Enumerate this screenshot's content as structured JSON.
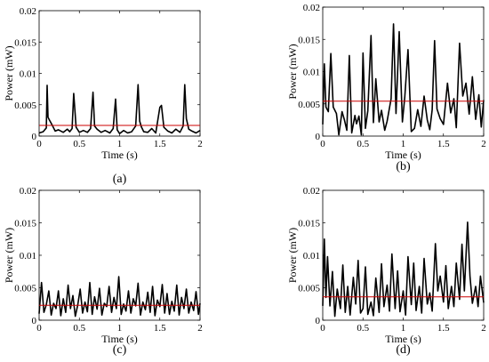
{
  "chart_data": [
    {
      "type": "line",
      "panel_label": "(a)",
      "xlabel": "Time (s)",
      "ylabel": "Power (mW)",
      "xlim": [
        0,
        2
      ],
      "ylim": [
        0,
        0.02
      ],
      "xticks": [
        "0",
        "0.5",
        "1",
        "1.5",
        "2"
      ],
      "yticks": [
        "0",
        "0.005",
        "0.01",
        "0.015",
        "0.02"
      ],
      "grid": false,
      "series": [
        {
          "color": "#000000",
          "x": [
            0.0,
            0.05,
            0.09,
            0.1,
            0.11,
            0.13,
            0.16,
            0.2,
            0.24,
            0.3,
            0.35,
            0.38,
            0.41,
            0.43,
            0.46,
            0.5,
            0.55,
            0.6,
            0.64,
            0.67,
            0.69,
            0.72,
            0.77,
            0.82,
            0.88,
            0.92,
            0.95,
            0.97,
            1.0,
            1.05,
            1.1,
            1.15,
            1.2,
            1.23,
            1.25,
            1.27,
            1.3,
            1.35,
            1.4,
            1.45,
            1.5,
            1.52,
            1.55,
            1.6,
            1.65,
            1.7,
            1.75,
            1.79,
            1.81,
            1.83,
            1.86,
            1.9,
            1.95,
            2.0
          ],
          "y": [
            0.0005,
            0.0007,
            0.0013,
            0.0081,
            0.003,
            0.0025,
            0.0018,
            0.0008,
            0.001,
            0.0006,
            0.0011,
            0.0007,
            0.0012,
            0.0068,
            0.0014,
            0.0006,
            0.0009,
            0.0006,
            0.0012,
            0.007,
            0.0016,
            0.0011,
            0.0006,
            0.0009,
            0.0005,
            0.0012,
            0.0059,
            0.001,
            0.0004,
            0.0009,
            0.0005,
            0.0007,
            0.0016,
            0.0082,
            0.0024,
            0.0015,
            0.0007,
            0.0006,
            0.0012,
            0.0005,
            0.0046,
            0.0049,
            0.0014,
            0.0008,
            0.0005,
            0.0011,
            0.0006,
            0.0016,
            0.0082,
            0.0028,
            0.0011,
            0.0008,
            0.0005,
            0.0009
          ]
        },
        {
          "color": "#cc0000",
          "x": [
            0,
            2
          ],
          "y": [
            0.0017,
            0.0017
          ]
        }
      ]
    },
    {
      "type": "line",
      "panel_label": "(b)",
      "xlabel": "Time (s)",
      "ylabel": "Power (mW)",
      "xlim": [
        0,
        2
      ],
      "ylim": [
        0,
        0.02
      ],
      "xticks": [
        "0",
        "0.5",
        "1",
        "1.5",
        "2"
      ],
      "yticks": [
        "0",
        "0.005",
        "0.01",
        "0.015",
        "0.02"
      ],
      "grid": false,
      "series": [
        {
          "color": "#000000",
          "x": [
            0.0,
            0.02,
            0.04,
            0.07,
            0.1,
            0.13,
            0.17,
            0.2,
            0.24,
            0.27,
            0.3,
            0.33,
            0.36,
            0.4,
            0.42,
            0.45,
            0.48,
            0.5,
            0.53,
            0.56,
            0.6,
            0.63,
            0.66,
            0.7,
            0.73,
            0.77,
            0.8,
            0.85,
            0.88,
            0.91,
            0.95,
            0.99,
            1.02,
            1.06,
            1.1,
            1.14,
            1.18,
            1.22,
            1.26,
            1.3,
            1.33,
            1.36,
            1.39,
            1.42,
            1.46,
            1.5,
            1.55,
            1.59,
            1.63,
            1.66,
            1.7,
            1.74,
            1.78,
            1.82,
            1.86,
            1.9,
            1.94,
            1.97,
            2.0
          ],
          "y": [
            0.0018,
            0.0112,
            0.0045,
            0.0038,
            0.0128,
            0.0045,
            0.0035,
            0.0002,
            0.0038,
            0.0025,
            0.0009,
            0.0125,
            0.0005,
            0.0032,
            0.0019,
            0.0031,
            0.0002,
            0.0129,
            0.0012,
            0.0039,
            0.0156,
            0.0021,
            0.0089,
            0.0022,
            0.004,
            0.0009,
            0.0023,
            0.0058,
            0.0174,
            0.0035,
            0.0162,
            0.0022,
            0.0061,
            0.0134,
            0.0007,
            0.0012,
            0.0041,
            0.0015,
            0.0062,
            0.0025,
            0.001,
            0.0041,
            0.0148,
            0.0042,
            0.0027,
            0.0018,
            0.0082,
            0.0036,
            0.0058,
            0.0013,
            0.0144,
            0.0062,
            0.0082,
            0.0034,
            0.0092,
            0.0026,
            0.0064,
            0.0014,
            0.0056
          ]
        },
        {
          "color": "#cc0000",
          "x": [
            0,
            2
          ],
          "y": [
            0.0054,
            0.0054
          ]
        }
      ]
    },
    {
      "type": "line",
      "panel_label": "(c)",
      "xlabel": "Time (s)",
      "ylabel": "Power (mW)",
      "xlim": [
        0,
        2
      ],
      "ylim": [
        0,
        0.02
      ],
      "xticks": [
        "0",
        "0.5",
        "1",
        "1.5",
        "2"
      ],
      "yticks": [
        "0",
        "0.005",
        "0.01",
        "0.015",
        "0.02"
      ],
      "grid": false,
      "series": [
        {
          "color": "#000000",
          "x": [
            0.0,
            0.03,
            0.06,
            0.09,
            0.12,
            0.15,
            0.18,
            0.21,
            0.24,
            0.27,
            0.3,
            0.33,
            0.36,
            0.39,
            0.42,
            0.45,
            0.48,
            0.51,
            0.54,
            0.57,
            0.6,
            0.63,
            0.66,
            0.69,
            0.72,
            0.75,
            0.78,
            0.81,
            0.84,
            0.87,
            0.9,
            0.93,
            0.96,
            0.99,
            1.02,
            1.05,
            1.08,
            1.11,
            1.14,
            1.17,
            1.2,
            1.23,
            1.26,
            1.29,
            1.32,
            1.35,
            1.38,
            1.41,
            1.44,
            1.47,
            1.5,
            1.53,
            1.56,
            1.59,
            1.62,
            1.65,
            1.68,
            1.71,
            1.74,
            1.77,
            1.8,
            1.83,
            1.86,
            1.89,
            1.92,
            1.95,
            1.98,
            2.0
          ],
          "y": [
            0.001,
            0.0058,
            0.0012,
            0.0024,
            0.0045,
            0.0008,
            0.0026,
            0.0018,
            0.0045,
            0.0007,
            0.0033,
            0.0012,
            0.0054,
            0.0018,
            0.0038,
            0.0006,
            0.0023,
            0.0048,
            0.0011,
            0.0028,
            0.0013,
            0.0058,
            0.0009,
            0.0036,
            0.0017,
            0.0049,
            0.0008,
            0.0026,
            0.0021,
            0.0052,
            0.0012,
            0.0035,
            0.0018,
            0.0067,
            0.0009,
            0.0025,
            0.0014,
            0.0045,
            0.0011,
            0.0033,
            0.0022,
            0.0057,
            0.0008,
            0.0028,
            0.0016,
            0.0043,
            0.0012,
            0.0052,
            0.0007,
            0.0031,
            0.0021,
            0.0055,
            0.0011,
            0.0041,
            0.0009,
            0.0029,
            0.0014,
            0.0054,
            0.0008,
            0.0035,
            0.0018,
            0.0048,
            0.0011,
            0.0028,
            0.0015,
            0.0044,
            0.0009,
            0.0026
          ]
        },
        {
          "color": "#cc0000",
          "x": [
            0,
            2
          ],
          "y": [
            0.0023,
            0.0023
          ]
        }
      ]
    },
    {
      "type": "line",
      "panel_label": "(d)",
      "xlabel": "Time (s)",
      "ylabel": "Power (mW)",
      "xlim": [
        0,
        2
      ],
      "ylim": [
        0,
        0.02
      ],
      "xticks": [
        "0",
        "0.5",
        "1",
        "1.5",
        "2"
      ],
      "yticks": [
        "0",
        "0.005",
        "0.01",
        "0.015",
        "0.02"
      ],
      "grid": false,
      "series": [
        {
          "color": "#000000",
          "x": [
            0.0,
            0.02,
            0.04,
            0.06,
            0.09,
            0.12,
            0.15,
            0.18,
            0.22,
            0.25,
            0.28,
            0.31,
            0.34,
            0.38,
            0.41,
            0.44,
            0.47,
            0.5,
            0.53,
            0.56,
            0.6,
            0.63,
            0.66,
            0.7,
            0.73,
            0.76,
            0.8,
            0.83,
            0.86,
            0.9,
            0.93,
            0.96,
            1.0,
            1.03,
            1.06,
            1.1,
            1.13,
            1.16,
            1.2,
            1.23,
            1.26,
            1.3,
            1.33,
            1.36,
            1.4,
            1.43,
            1.46,
            1.5,
            1.53,
            1.56,
            1.6,
            1.63,
            1.66,
            1.7,
            1.73,
            1.76,
            1.8,
            1.83,
            1.86,
            1.9,
            1.93,
            1.96,
            2.0
          ],
          "y": [
            0.0022,
            0.0125,
            0.0035,
            0.0098,
            0.0022,
            0.0075,
            0.0006,
            0.0048,
            0.0018,
            0.0085,
            0.0012,
            0.0052,
            0.0008,
            0.0066,
            0.0025,
            0.0092,
            0.0011,
            0.0018,
            0.0082,
            0.0009,
            0.0028,
            0.0007,
            0.0065,
            0.0012,
            0.0087,
            0.0021,
            0.0054,
            0.0014,
            0.0102,
            0.0018,
            0.0076,
            0.0013,
            0.0045,
            0.0008,
            0.0098,
            0.0024,
            0.0088,
            0.0015,
            0.0052,
            0.0011,
            0.0095,
            0.0025,
            0.0042,
            0.0014,
            0.0118,
            0.0045,
            0.0068,
            0.0028,
            0.0084,
            0.0018,
            0.0052,
            0.0021,
            0.0088,
            0.0032,
            0.0117,
            0.0045,
            0.0151,
            0.0068,
            0.0026,
            0.0052,
            0.0021,
            0.0068,
            0.0027
          ]
        },
        {
          "color": "#cc0000",
          "x": [
            0,
            2
          ],
          "y": [
            0.0036,
            0.0036
          ]
        }
      ]
    }
  ]
}
